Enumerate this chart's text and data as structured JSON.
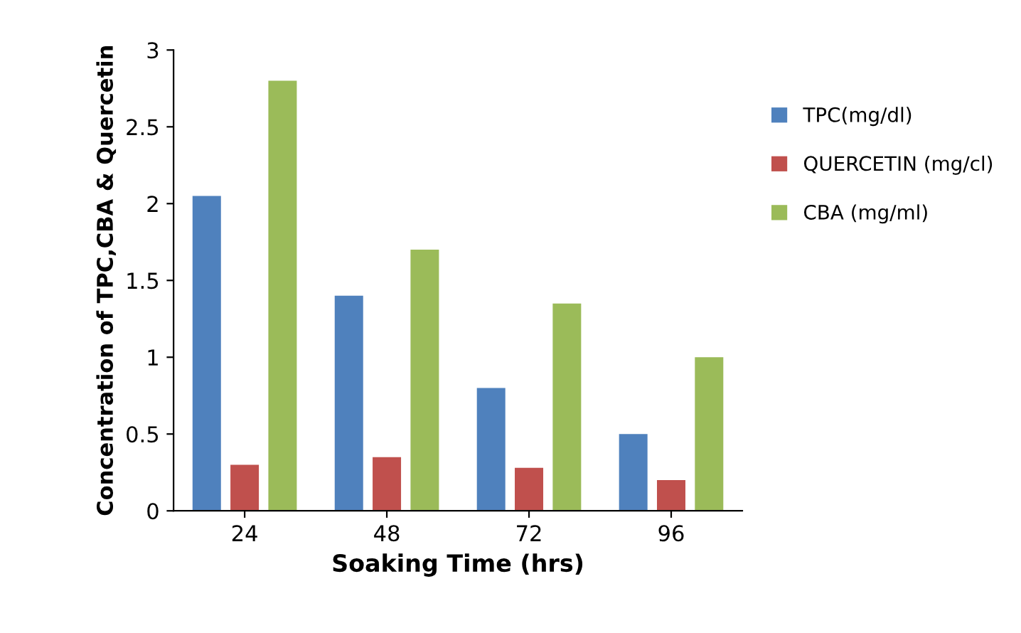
{
  "chart_data": {
    "type": "bar",
    "xlabel": "Soaking Time (hrs)",
    "ylabel": "Concentration of TPC,CBA & Quercetin",
    "categories": [
      "24",
      "48",
      "72",
      "96"
    ],
    "series": [
      {
        "name": "TPC(mg/dl)",
        "color": "#4f81bd",
        "values": [
          2.05,
          1.4,
          0.8,
          0.5
        ]
      },
      {
        "name": "QUERCETIN (mg/cl)",
        "color": "#c0504d",
        "values": [
          0.3,
          0.35,
          0.28,
          0.2
        ]
      },
      {
        "name": "CBA (mg/ml)",
        "color": "#9bbb59",
        "values": [
          2.8,
          1.7,
          1.35,
          1.0
        ]
      }
    ],
    "ylim": [
      0,
      3
    ],
    "yticks": [
      0,
      0.5,
      1,
      1.5,
      2,
      2.5,
      3
    ],
    "grid": false,
    "legend": "right"
  }
}
